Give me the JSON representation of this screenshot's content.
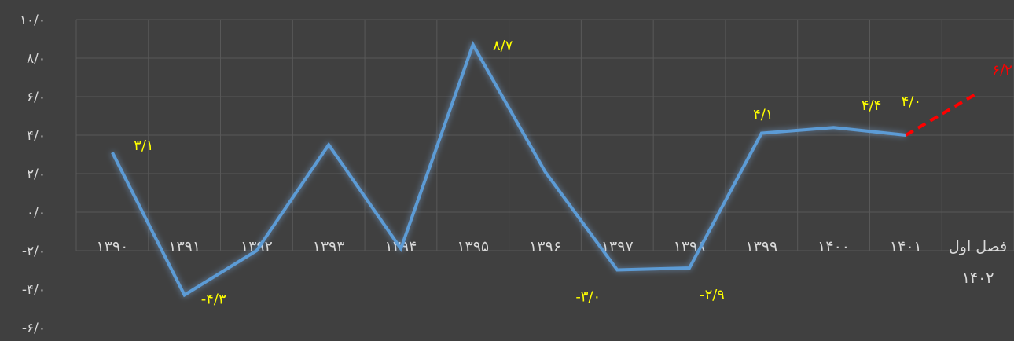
{
  "chart_data": {
    "type": "line",
    "title": "",
    "xlabel": "",
    "ylabel": "",
    "categories": [
      "۱۳۹۰",
      "۱۳۹۱",
      "۱۳۹۲",
      "۱۳۹۳",
      "۱۳۹۴",
      "۱۳۹۵",
      "۱۳۹۶",
      "۱۳۹۷",
      "۱۳۹۸",
      "۱۳۹۹",
      "۱۴۰۰",
      "۱۴۰۱",
      "فصل اول ۱۴۰۲"
    ],
    "category_lines": [
      [
        "۱۳۹۰"
      ],
      [
        "۱۳۹۱"
      ],
      [
        "۱۳۹۲"
      ],
      [
        "۱۳۹۳"
      ],
      [
        "۱۳۹۴"
      ],
      [
        "۱۳۹۵"
      ],
      [
        "۱۳۹۶"
      ],
      [
        "۱۳۹۷"
      ],
      [
        "۱۳۹۸"
      ],
      [
        "۱۳۹۹"
      ],
      [
        "۱۴۰۰"
      ],
      [
        "۱۴۰۱"
      ],
      [
        "فصل اول",
        "۱۴۰۲"
      ]
    ],
    "series": [
      {
        "values": [
          3.1,
          -4.3,
          -2.0,
          3.5,
          -1.9,
          8.7,
          2.1,
          -3.0,
          -2.9,
          4.1,
          4.4,
          4.0,
          null
        ],
        "color": "#5b9bd5",
        "style": "solid"
      },
      {
        "values": [
          null,
          null,
          null,
          null,
          null,
          null,
          null,
          null,
          null,
          null,
          null,
          4.0,
          6.2
        ],
        "color": "#ff0000",
        "style": "dashed"
      }
    ],
    "data_labels": [
      {
        "index": 0,
        "value": 3.1,
        "text": "۳/۱",
        "color": "#ffff00"
      },
      {
        "index": 1,
        "value": -4.3,
        "text": "-۴/۳",
        "color": "#ffff00"
      },
      {
        "index": 5,
        "value": 8.7,
        "text": "۸/۷",
        "color": "#ffff00"
      },
      {
        "index": 7,
        "value": -3.0,
        "text": "-۳/۰",
        "color": "#ffff00"
      },
      {
        "index": 8,
        "value": -2.9,
        "text": "-۲/۹",
        "color": "#ffff00"
      },
      {
        "index": 9,
        "value": 4.1,
        "text": "۴/۱",
        "color": "#ffff00"
      },
      {
        "index": 10,
        "value": 4.4,
        "text": "۴/۴",
        "color": "#ffff00"
      },
      {
        "index": 11,
        "value": 4.0,
        "text": "۴/۰",
        "color": "#ffff00"
      },
      {
        "index": 12,
        "value": 6.2,
        "text": "۶/۲",
        "color": "#ff0000"
      }
    ],
    "yticks": [
      10,
      8,
      6,
      4,
      2,
      0,
      -2,
      -4,
      -6
    ],
    "ytick_labels": [
      "۱۰/۰",
      "۸/۰",
      "۶/۰",
      "۴/۰",
      "۲/۰",
      "۰/۰",
      "-۲/۰",
      "-۴/۰",
      "-۶/۰"
    ],
    "ylim": [
      -6,
      10
    ],
    "grid": true,
    "legend": "none",
    "colors": {
      "background": "#404040",
      "gridline": "#595959",
      "axis_text": "#d9d9d9",
      "label_default": "#ffff00"
    }
  }
}
